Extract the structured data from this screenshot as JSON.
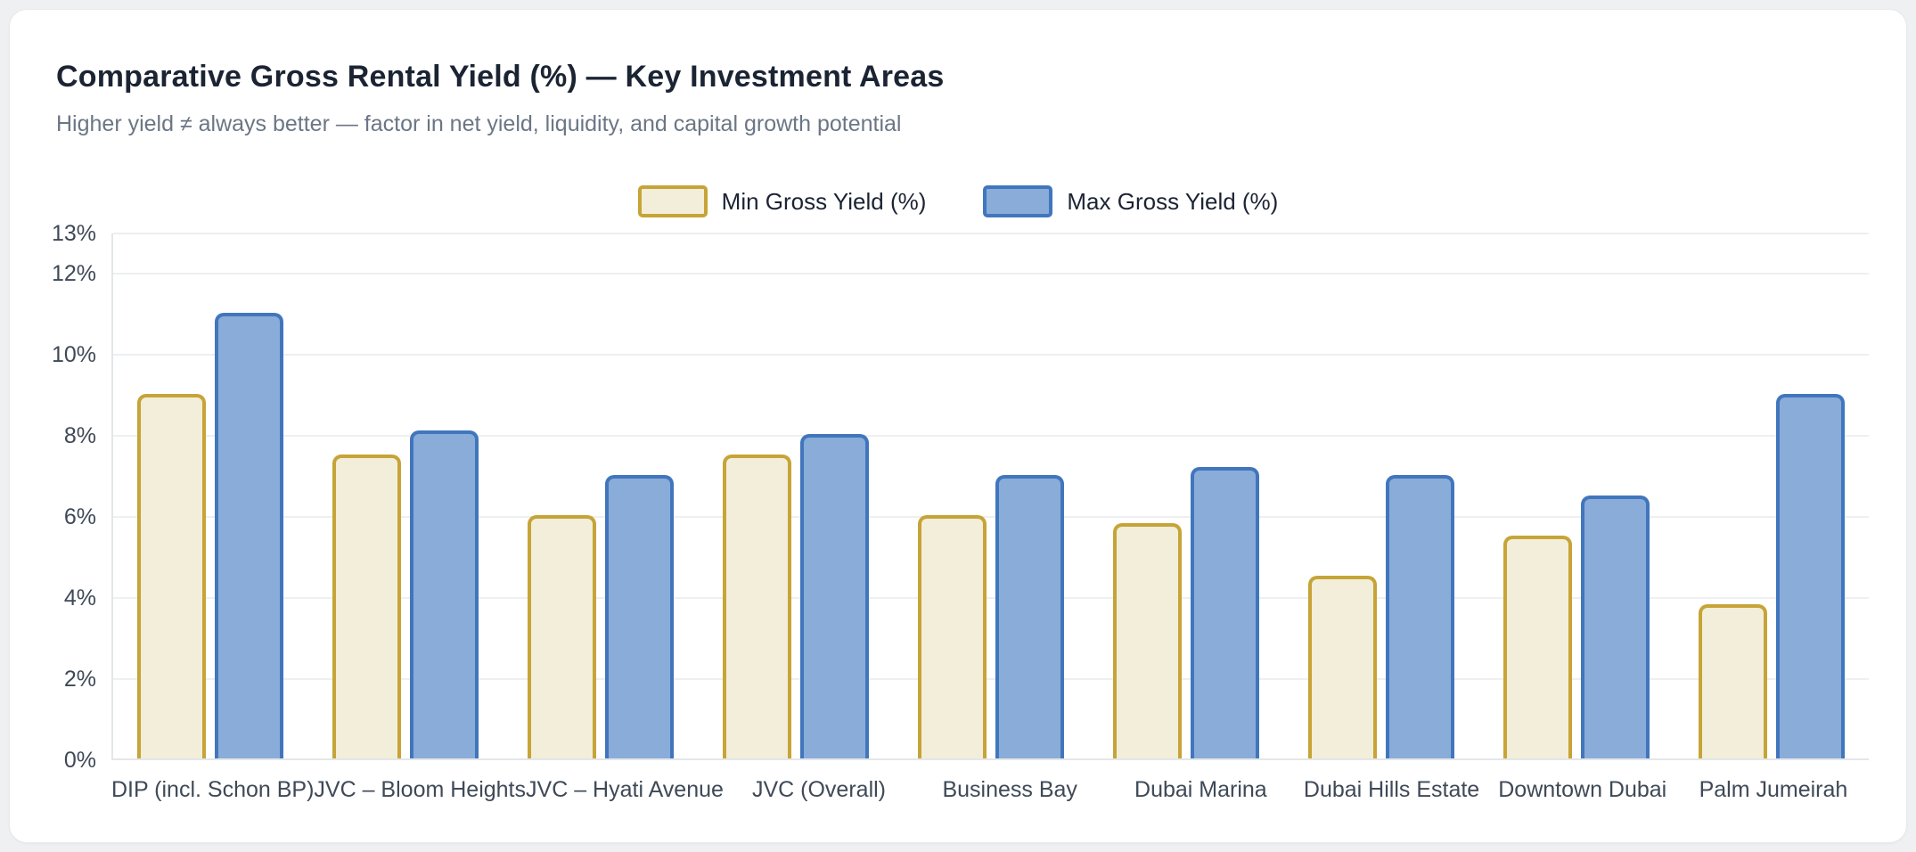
{
  "card": {
    "title": "Comparative Gross Rental Yield (%) — Key Investment Areas",
    "subtitle": "Higher yield ≠ always better — factor in net yield, liquidity, and capital growth potential"
  },
  "colors": {
    "page_background": "#eef0f1",
    "card_background": "#ffffff",
    "title_text": "#1b2433",
    "subtitle_text": "#6b7685",
    "axis_text": "#3f4957",
    "gridline": "#eeeff1",
    "min_fill": "#f2eeda",
    "min_border": "#c6a437",
    "max_fill": "#8aacd9",
    "max_border": "#4176bd"
  },
  "chart_data": {
    "type": "bar",
    "title": "Comparative Gross Rental Yield (%) — Key Investment Areas",
    "subtitle": "Higher yield ≠ always better — factor in net yield, liquidity, and capital growth potential",
    "categories": [
      "DIP (incl. Schon BP)",
      "JVC – Bloom Heights",
      "JVC – Hyati Avenue",
      "JVC (Overall)",
      "Business Bay",
      "Dubai Marina",
      "Dubai Hills Estate",
      "Downtown Dubai",
      "Palm Jumeirah"
    ],
    "series": [
      {
        "name": "Min Gross Yield (%)",
        "values": [
          9.0,
          7.5,
          6.0,
          7.5,
          6.0,
          5.8,
          4.5,
          5.5,
          3.8
        ],
        "fill": "#f2eeda",
        "border": "#c6a437"
      },
      {
        "name": "Max Gross Yield (%)",
        "values": [
          11.0,
          8.1,
          7.0,
          8.0,
          7.0,
          7.2,
          7.0,
          6.5,
          9.0
        ],
        "fill": "#8aacd9",
        "border": "#4176bd"
      }
    ],
    "xlabel": "",
    "ylabel": "",
    "ylim": [
      0,
      13
    ],
    "yticks": [
      0,
      2,
      4,
      6,
      8,
      10,
      12,
      13
    ],
    "ytick_suffix": "%",
    "grid": true,
    "legend_position": "top-center"
  }
}
